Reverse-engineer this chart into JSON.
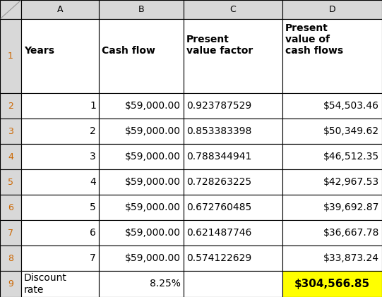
{
  "col_headers": [
    "A",
    "B",
    "C",
    "D"
  ],
  "header_row": [
    "Years",
    "Cash flow",
    "Present\nvalue factor",
    "Present\nvalue of\ncash flows"
  ],
  "data_rows": [
    [
      "1",
      "$59,000.00",
      "0.923787529",
      "$54,503.46"
    ],
    [
      "2",
      "$59,000.00",
      "0.853383398",
      "$50,349.62"
    ],
    [
      "3",
      "$59,000.00",
      "0.788344941",
      "$46,512.35"
    ],
    [
      "4",
      "$59,000.00",
      "0.728263225",
      "$42,967.53"
    ],
    [
      "5",
      "$59,000.00",
      "0.672760485",
      "$39,692.87"
    ],
    [
      "6",
      "$59,000.00",
      "0.621487746",
      "$36,667.78"
    ],
    [
      "7",
      "$59,000.00",
      "0.574122629",
      "$33,873.24"
    ]
  ],
  "footer_row_a": "Discount\nrate",
  "footer_row_b": "8.25%",
  "footer_row_d": "$304,566.85",
  "col_header_bg": "#d8d8d8",
  "row_num_bg": "#d8d8d8",
  "data_bg": "#ffffff",
  "footer_d_bg": "#ffff00",
  "fig_width": 5.41,
  "fig_height": 4.21,
  "dpi": 100,
  "col_letter_row_num": [
    "1",
    "2",
    "3",
    "4",
    "5",
    "6",
    "7",
    "8",
    "9"
  ],
  "row_num_color": "#c06000"
}
